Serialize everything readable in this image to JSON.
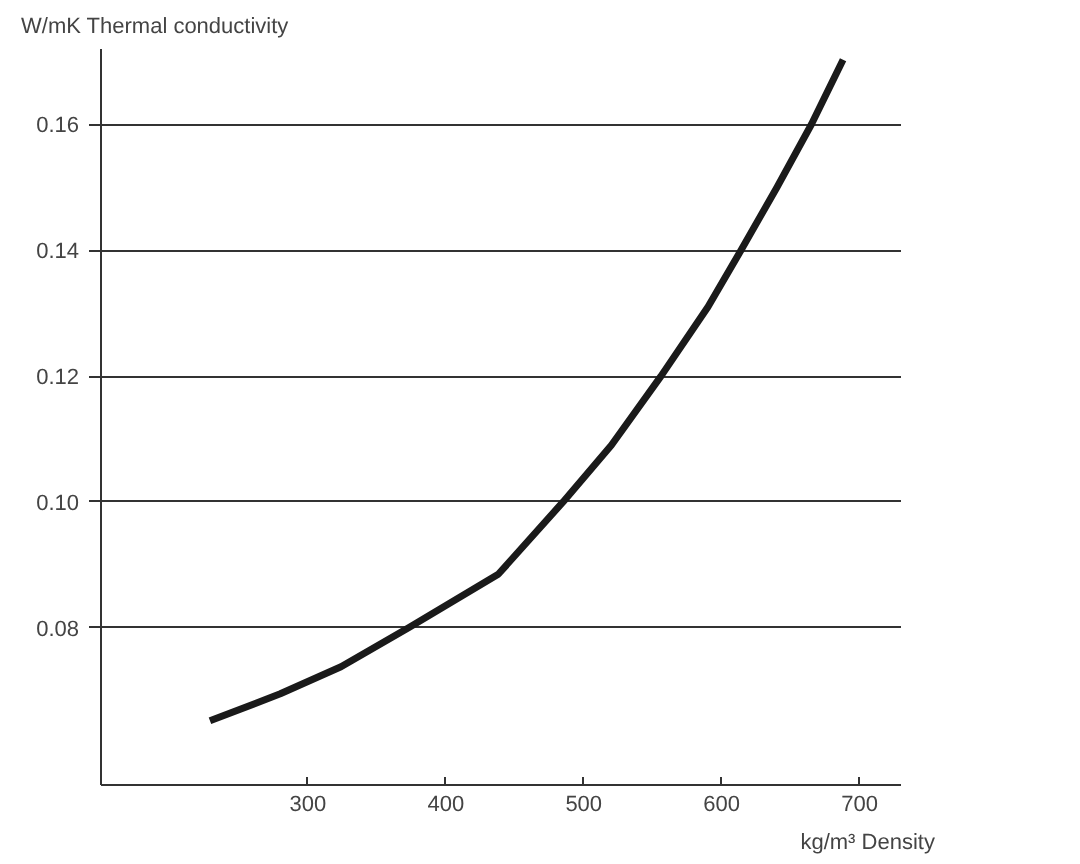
{
  "chart_data": {
    "type": "line",
    "ylabel": "W/mK  Thermal conductivity",
    "xlabel": "kg/m³  Density",
    "x": [
      229,
      280,
      324,
      373,
      438,
      485,
      520,
      556,
      590,
      614,
      640,
      665,
      688
    ],
    "series": [
      {
        "color": "#1a1a1a",
        "values": [
          0.0652,
          0.0695,
          0.0738,
          0.08,
          0.0885,
          0.1,
          0.109,
          0.12,
          0.131,
          0.14,
          0.15,
          0.16,
          0.1703
        ]
      }
    ],
    "xlim": [
      150,
      730
    ],
    "ylim": [
      0.055,
      0.172
    ],
    "xticks": [
      300,
      400,
      500,
      600,
      700
    ],
    "yticks": [
      {
        "value": 0.08,
        "label": "0.08"
      },
      {
        "value": 0.1,
        "label": "0.10"
      },
      {
        "value": 0.12,
        "label": "0.12"
      },
      {
        "value": 0.14,
        "label": "0.14"
      },
      {
        "value": 0.16,
        "label": "0.16"
      }
    ],
    "grid": "y",
    "marker": "none",
    "line_style": "solid"
  }
}
